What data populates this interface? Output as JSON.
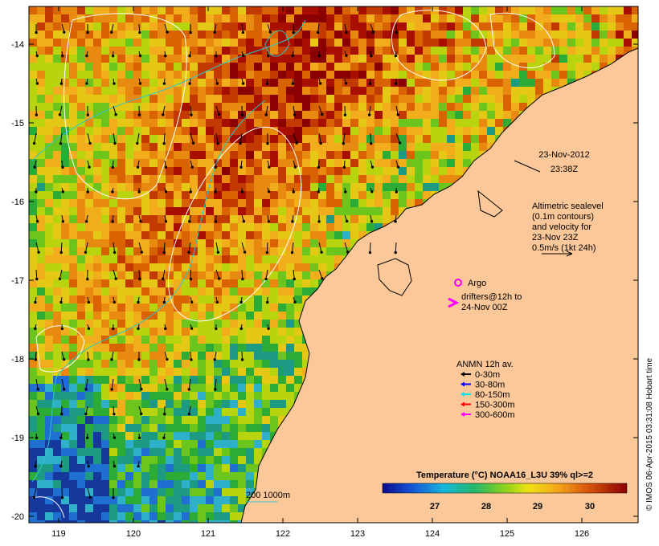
{
  "map": {
    "lat_labels": [
      "-14",
      "-15",
      "-16",
      "-17",
      "-18",
      "-19",
      "-20"
    ],
    "lon_labels": [
      "119",
      "120",
      "121",
      "122",
      "123",
      "124",
      "125",
      "126"
    ],
    "ocean_palette": [
      "#8b0000",
      "#a80f00",
      "#c23a00",
      "#d96300",
      "#e88a10",
      "#f2ad1c",
      "#e5c815",
      "#b8d40f",
      "#6cc51d",
      "#2dab37",
      "#1c9b82",
      "#2fb0c9",
      "#1f6fd0",
      "#16379c"
    ],
    "land_color": "#fcc899",
    "coast_color": "#000000"
  },
  "timestamp": {
    "date": "23-Nov-2012",
    "time": "23:38Z"
  },
  "altimetry_note": [
    "Altimetric sealevel",
    "(0.1m contours)",
    "and velocity for",
    "23-Nov 23Z",
    "0.5m/s (1kt 24h)"
  ],
  "legend": {
    "argo_label": "Argo",
    "argo_color": "#ff00ff",
    "drifters_label": [
      "drifters@12h to",
      "24-Nov 00Z"
    ],
    "anmn_title": "ANMN 12h av.",
    "depth_classes": [
      {
        "label": "0-30m",
        "color": "#000000"
      },
      {
        "label": "30-80m",
        "color": "#0000ff"
      },
      {
        "label": "80-150m",
        "color": "#00e5e5"
      },
      {
        "label": "150-300m",
        "color": "#ff0000"
      },
      {
        "label": "300-600m",
        "color": "#ff00ff"
      }
    ]
  },
  "bathy_label": "200  1000m",
  "colorbar": {
    "title": "Temperature (°C) NOAA16_L3U 39% ql>=2",
    "ticks": [
      "27",
      "28",
      "29",
      "30"
    ]
  },
  "credit": "© IMOS 06-Apr-2015 03:31:08 Hobart time"
}
